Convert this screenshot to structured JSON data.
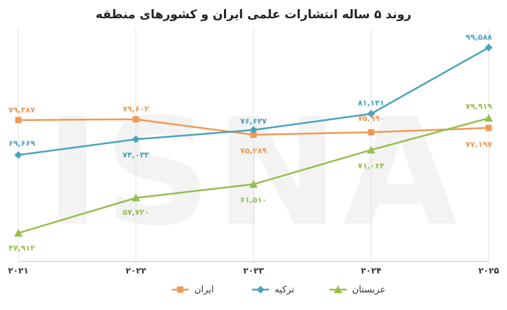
{
  "watermark": "ISNA",
  "colors": {
    "grid": "#e2e2e2",
    "axis": "#bdbdbd"
  },
  "chart_data": {
    "type": "line",
    "title": "روند ۵ ساله انتشارات علمی ایران و کشورهای منطقه",
    "categories": [
      "۲۰۲۱",
      "۲۰۲۲",
      "۲۰۲۳",
      "۲۰۲۴",
      "۲۰۲۵"
    ],
    "ylim": [
      40000,
      105000
    ],
    "grid": true,
    "legend_position": "bottom",
    "series": [
      {
        "name": "ایران",
        "color": "#ef9a56",
        "marker": "square",
        "values": [
          79387,
          79602,
          75289,
          75990,
          77197
        ],
        "labels": [
          "۷۹,۳۸۷",
          "۷۹,۶۰۲",
          "۷۵,۲۸۹",
          "۷۵,۹۹۰",
          "۷۷,۱۹۷"
        ]
      },
      {
        "name": "ترکیه",
        "color": "#4aa3c0",
        "marker": "diamond",
        "values": [
          69669,
          74033,
          76627,
          81141,
          99588
        ],
        "labels": [
          "۶۹,۶۶۹",
          "۷۴,۰۳۳",
          "۷۶,۶۲۷",
          "۸۱,۱۴۱",
          "۹۹,۵۸۸"
        ]
      },
      {
        "name": "عربستان",
        "color": "#97be4f",
        "marker": "triangle",
        "values": [
          47912,
          57720,
          61510,
          71064,
          79919
        ],
        "labels": [
          "۴۷,۹۱۲",
          "۵۷,۷۲۰",
          "۶۱,۵۱۰",
          "۷۱,۰۶۴",
          "۷۹,۹۱۹"
        ]
      }
    ]
  }
}
